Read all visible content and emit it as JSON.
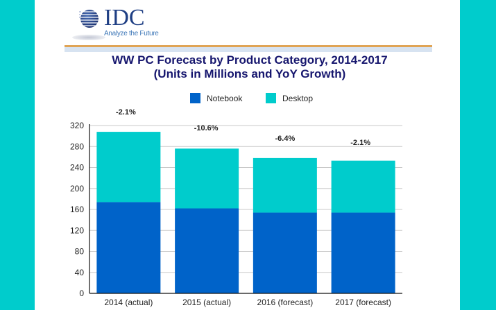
{
  "brand": {
    "logo_text": "IDC",
    "tagline": "Analyze the Future"
  },
  "colors": {
    "background": "#00CCCC",
    "notebook": "#0063C9",
    "desktop": "#00CCCC",
    "title": "#16166e",
    "rule_orange": "#E0A455",
    "rule_blue": "#D7E3F1"
  },
  "chart_data": {
    "type": "bar",
    "stacked": true,
    "title": "WW PC Forecast by Product Category, 2014-2017",
    "subtitle": "(Units in Millions and YoY Growth)",
    "xlabel": "",
    "ylabel": "",
    "categories": [
      "2014 (actual)",
      "2015 (actual)",
      "2016 (forecast)",
      "2017 (forecast)"
    ],
    "series": [
      {
        "name": "Notebook",
        "color": "#0063C9",
        "values": [
          174,
          162,
          154,
          154
        ]
      },
      {
        "name": "Desktop",
        "color": "#00CCCC",
        "values": [
          134,
          114,
          104,
          99
        ]
      }
    ],
    "totals": [
      308,
      276,
      258,
      253
    ],
    "annotations": [
      "-2.1%",
      "-10.6%",
      "-6.4%",
      "-2.1%"
    ],
    "ylim": [
      0,
      320
    ],
    "yticks": [
      0,
      40,
      80,
      120,
      160,
      200,
      240,
      280,
      320
    ],
    "grid": true,
    "legend": "top-center"
  }
}
